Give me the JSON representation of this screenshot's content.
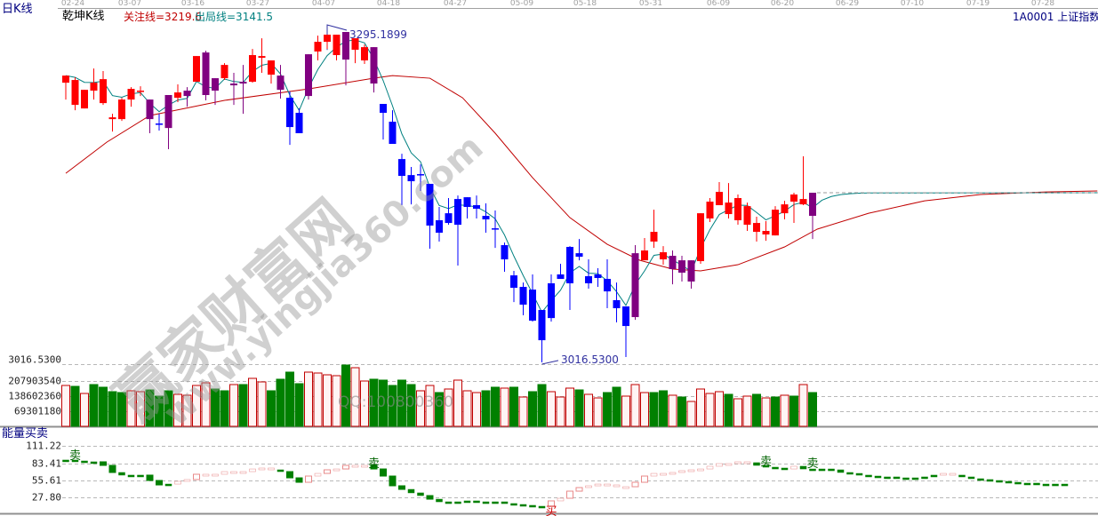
{
  "header": {
    "period_label": "日K线",
    "indicator_name": "乾坤K线",
    "attention_line_label": "关注线=3219.6",
    "exit_line_label": "出局线=3141.5",
    "symbol": "1A0001 上证指数"
  },
  "date_axis": [
    "02-24",
    "03-07",
    "03-16",
    "03-27",
    "04-07",
    "04-18",
    "04-27",
    "05-09",
    "05-18",
    "05-31",
    "06-09",
    "06-20",
    "06-29",
    "07-10",
    "07-19",
    "07-28"
  ],
  "price_markers": {
    "high_label": "3295.1899",
    "low_label": "3016.5300",
    "high": 3295.1899,
    "low": 3016.53
  },
  "volume_panel": {
    "top_label": "3016.5300",
    "axis_labels": [
      "207903540",
      "138602360",
      "69301180"
    ],
    "axis_values": [
      207903540,
      138602360,
      69301180
    ]
  },
  "energy_panel": {
    "title": "能量买卖",
    "axis_labels": [
      "111.22",
      "83.41",
      "55.61",
      "27.80"
    ],
    "axis_values": [
      111.22,
      83.41,
      55.61,
      27.8
    ]
  },
  "watermark": {
    "site_name": "赢家财富网",
    "url": "www.yingjia360.com",
    "qq": "QQ:100800360"
  },
  "colors": {
    "up_candle": "#ff0000",
    "neutral_candle": "#800080",
    "down_candle": "#0000ff",
    "attention_line": "#c00000",
    "exit_line": "#008080",
    "volume_up": "#c00000",
    "volume_down": "#008000",
    "energy_up": "#e88a8a",
    "energy_down": "#008000",
    "label_blue": "#000080"
  },
  "chart_data": {
    "type": "candlestick",
    "candle_fields": [
      "open",
      "high",
      "low",
      "close",
      "color"
    ],
    "candles": [
      [
        3252.4,
        3258.4,
        3238.2,
        3258.4,
        "r"
      ],
      [
        3233.7,
        3257.0,
        3229.2,
        3254.7,
        "r"
      ],
      [
        3230.7,
        3246.4,
        3230.7,
        3246.4,
        "r"
      ],
      [
        3245.7,
        3264.4,
        3238.2,
        3252.4,
        "r"
      ],
      [
        3235.2,
        3262.2,
        3233.7,
        3255.4,
        "r"
      ],
      [
        3221.7,
        3226.2,
        3211.2,
        3223.2,
        "r"
      ],
      [
        3221.7,
        3239.7,
        3220.2,
        3238.2,
        "r"
      ],
      [
        3238.2,
        3248.7,
        3232.2,
        3247.2,
        "r"
      ],
      [
        3245.0,
        3249.4,
        3241.2,
        3245.7,
        "r"
      ],
      [
        3238.2,
        3238.2,
        3209.8,
        3221.7,
        "p"
      ],
      [
        3218.0,
        3226.2,
        3212.0,
        3217.2,
        "b"
      ],
      [
        3214.2,
        3242.0,
        3196.3,
        3242.0,
        "p"
      ],
      [
        3239.7,
        3251.0,
        3236.0,
        3244.2,
        "r"
      ],
      [
        3245.7,
        3248.7,
        3232.2,
        3241.2,
        "p"
      ],
      [
        3253.2,
        3274.9,
        3253.2,
        3274.9,
        "r"
      ],
      [
        3277.9,
        3279.4,
        3237.5,
        3242.0,
        "p"
      ],
      [
        3256.2,
        3256.2,
        3233.7,
        3245.7,
        "p"
      ],
      [
        3256.2,
        3268.9,
        3254.7,
        3267.4,
        "r"
      ],
      [
        3251.7,
        3260.7,
        3233.7,
        3250.2,
        "p"
      ],
      [
        3253.2,
        3267.4,
        3226.2,
        3251.7,
        "p"
      ],
      [
        3253.2,
        3280.9,
        3252.4,
        3275.7,
        "r"
      ],
      [
        3273.4,
        3289.9,
        3260.7,
        3274.9,
        "r"
      ],
      [
        3259.2,
        3271.2,
        3251.7,
        3271.2,
        "r"
      ],
      [
        3258.4,
        3267.4,
        3239.0,
        3246.4,
        "p"
      ],
      [
        3239.7,
        3245.0,
        3200.0,
        3215.0,
        "b"
      ],
      [
        3227.0,
        3230.7,
        3209.8,
        3209.8,
        "b"
      ],
      [
        3241.2,
        3276.4,
        3238.2,
        3276.4,
        "p"
      ],
      [
        3278.7,
        3292.1,
        3271.2,
        3286.9,
        "r"
      ],
      [
        3286.9,
        3292.9,
        3280.9,
        3292.9,
        "r"
      ],
      [
        3275.7,
        3292.9,
        3271.2,
        3292.9,
        "r"
      ],
      [
        3271.9,
        3295.19,
        3250.2,
        3295.19,
        "p"
      ],
      [
        3280.2,
        3289.9,
        3268.9,
        3289.9,
        "r"
      ],
      [
        3271.2,
        3284.6,
        3268.2,
        3282.4,
        "r"
      ],
      [
        3282.4,
        3282.4,
        3244.2,
        3251.7,
        "p"
      ],
      [
        3234.5,
        3234.5,
        3204.5,
        3227.0,
        "b"
      ],
      [
        3219.5,
        3229.2,
        3200.8,
        3200.8,
        "b"
      ],
      [
        3188.0,
        3192.5,
        3149.1,
        3173.8,
        "b"
      ],
      [
        3174.5,
        3181.3,
        3149.8,
        3169.3,
        "b"
      ],
      [
        3175.3,
        3183.5,
        3161.1,
        3174.5,
        "b"
      ],
      [
        3167.1,
        3167.1,
        3112.4,
        3131.9,
        "b"
      ],
      [
        3136.4,
        3147.6,
        3118.4,
        3125.9,
        "b"
      ],
      [
        3134.1,
        3155.1,
        3132.6,
        3142.3,
        "b"
      ],
      [
        3132.6,
        3157.3,
        3098.2,
        3154.3,
        "b"
      ],
      [
        3155.8,
        3155.8,
        3137.9,
        3147.6,
        "b"
      ],
      [
        3149.1,
        3157.3,
        3137.9,
        3146.1,
        "b"
      ],
      [
        3140.1,
        3150.6,
        3125.9,
        3137.1,
        "b"
      ],
      [
        3129.6,
        3144.6,
        3113.1,
        3128.9,
        "b"
      ],
      [
        3115.4,
        3117.6,
        3092.9,
        3103.4,
        "b"
      ],
      [
        3089.9,
        3093.7,
        3067.4,
        3079.4,
        "b"
      ],
      [
        3080.2,
        3083.9,
        3056.2,
        3065.2,
        "b"
      ],
      [
        3077.9,
        3090.7,
        3050.9,
        3051.7,
        "b"
      ],
      [
        3060.7,
        3060.7,
        3016.53,
        3035.2,
        "b"
      ],
      [
        3053.9,
        3090.7,
        3050.9,
        3083.2,
        "b"
      ],
      [
        3086.9,
        3099.7,
        3086.9,
        3090.7,
        "b"
      ],
      [
        3083.2,
        3114.6,
        3060.7,
        3113.9,
        "b"
      ],
      [
        3108.6,
        3120.6,
        3102.6,
        3105.6,
        "b"
      ],
      [
        3089.2,
        3103.4,
        3078.7,
        3083.2,
        "b"
      ],
      [
        3087.7,
        3095.9,
        3080.2,
        3090.7,
        "b"
      ],
      [
        3086.9,
        3103.4,
        3062.2,
        3076.4,
        "b"
      ],
      [
        3069.0,
        3083.9,
        3050.2,
        3062.2,
        "b"
      ],
      [
        3063.7,
        3063.7,
        3021.0,
        3047.2,
        "b"
      ],
      [
        3054.7,
        3115.4,
        3052.4,
        3108.6,
        "p"
      ],
      [
        3102.6,
        3121.4,
        3102.6,
        3110.9,
        "r"
      ],
      [
        3118.4,
        3145.3,
        3113.1,
        3126.6,
        "r"
      ],
      [
        3103.4,
        3114.6,
        3098.9,
        3109.4,
        "r"
      ],
      [
        3106.4,
        3110.9,
        3082.4,
        3095.2,
        "p"
      ],
      [
        3102.6,
        3106.4,
        3084.7,
        3092.2,
        "p"
      ],
      [
        3102.6,
        3102.6,
        3078.7,
        3084.7,
        "p"
      ],
      [
        3101.9,
        3142.3,
        3099.7,
        3142.3,
        "r"
      ],
      [
        3137.9,
        3155.1,
        3134.9,
        3152.1,
        "r"
      ],
      [
        3149.1,
        3168.6,
        3149.1,
        3160.3,
        "r"
      ],
      [
        3141.6,
        3167.8,
        3137.9,
        3151.3,
        "r"
      ],
      [
        3136.4,
        3158.1,
        3132.6,
        3155.1,
        "r"
      ],
      [
        3132.6,
        3151.3,
        3127.4,
        3148.3,
        "r"
      ],
      [
        3126.6,
        3139.4,
        3118.4,
        3134.1,
        "r"
      ],
      [
        3124.4,
        3135.6,
        3119.1,
        3127.4,
        "r"
      ],
      [
        3123.6,
        3148.3,
        3123.6,
        3145.3,
        "r"
      ],
      [
        3142.3,
        3152.8,
        3137.1,
        3149.8,
        "r"
      ],
      [
        3152.1,
        3159.6,
        3134.1,
        3158.1,
        "r"
      ],
      [
        3149.8,
        3190.3,
        3149.1,
        3154.3,
        "r"
      ],
      [
        3159.6,
        3159.6,
        3120.6,
        3140.1,
        "p"
      ]
    ],
    "reference_level": 3159.6,
    "long_line": [
      [
        0,
        3176.0
      ],
      [
        4.4,
        3202.3
      ],
      [
        9,
        3224.7
      ],
      [
        17,
        3237.5
      ],
      [
        26,
        3247.2
      ],
      [
        33,
        3256.2
      ],
      [
        35,
        3258.4
      ],
      [
        39,
        3256.2
      ],
      [
        42.5,
        3239.7
      ],
      [
        46,
        3209.8
      ],
      [
        50,
        3172.3
      ],
      [
        54,
        3138.6
      ],
      [
        58,
        3116.1
      ],
      [
        61.5,
        3102.6
      ],
      [
        65,
        3095.2
      ],
      [
        68,
        3093.7
      ],
      [
        72,
        3098.9
      ],
      [
        77,
        3113.9
      ],
      [
        80.5,
        3128.9
      ],
      [
        86,
        3142.3
      ],
      [
        92,
        3152.8
      ],
      [
        98,
        3158.1
      ],
      [
        105,
        3160.3
      ],
      [
        110.5,
        3161.1
      ]
    ],
    "volume": [
      187500000,
      183400000,
      150800000,
      191600000,
      179400000,
      159000000,
      154900000,
      163100000,
      159000000,
      167100000,
      138600000,
      163100000,
      146800000,
      142700000,
      187500000,
      199700000,
      171200000,
      163100000,
      191600000,
      191600000,
      220100000,
      203800000,
      163100000,
      216100000,
      248700000,
      195700000,
      248700000,
      244600000,
      236400000,
      232400000,
      281300000,
      269000000,
      207900000,
      216100000,
      212000000,
      187500000,
      212000000,
      191600000,
      163100000,
      187500000,
      154900000,
      171200000,
      212000000,
      163100000,
      154900000,
      163100000,
      179400000,
      175300000,
      179400000,
      134500000,
      159000000,
      191600000,
      159000000,
      134500000,
      175300000,
      167100000,
      146800000,
      130400000,
      154900000,
      179400000,
      138600000,
      191600000,
      154900000,
      154900000,
      163100000,
      142700000,
      134500000,
      114100000,
      171200000,
      150800000,
      159000000,
      146800000,
      126400000,
      138600000,
      146800000,
      130400000,
      134500000,
      142700000,
      138600000,
      191600000,
      154900000
    ],
    "volume_colors": "udufddduuddduuuudduduudddduuuuduuddddduuduuuuddududduuuduudduuudduduuuuduudududud",
    "energy": [
      88.2,
      86.7,
      85.3,
      85.3,
      79.5,
      68.0,
      63.7,
      63.7,
      63.7,
      55.0,
      47.8,
      49.2,
      53.6,
      56.5,
      65.1,
      63.7,
      65.1,
      69.4,
      69.4,
      69.4,
      73.7,
      75.2,
      72.3,
      69.4,
      59.3,
      52.1,
      62.2,
      66.5,
      72.3,
      73.7,
      79.5,
      78.1,
      79.5,
      73.7,
      62.2,
      46.4,
      40.6,
      34.9,
      30.5,
      24.7,
      20.4,
      19.0,
      20.4,
      21.9,
      20.4,
      20.4,
      20.4,
      17.6,
      16.1,
      14.7,
      11.8,
      13.2,
      21.9,
      26.2,
      37.7,
      43.5,
      46.4,
      49.2,
      47.8,
      44.9,
      44.9,
      52.1,
      62.2,
      66.5,
      66.5,
      68.0,
      70.9,
      72.3,
      73.7,
      78.1,
      82.4,
      82.4,
      85.3,
      83.9,
      79.5,
      76.6,
      75.2,
      73.7,
      78.1,
      73.7,
      73.7,
      73.7,
      72.3,
      68.0,
      66.5,
      63.7,
      62.2,
      60.8,
      60.8,
      59.3,
      59.3,
      59.3,
      60.8,
      63.7,
      66.5,
      63.7,
      60.8,
      57.9,
      56.5,
      55.0,
      53.6,
      52.1,
      50.7,
      50.7,
      49.2,
      49.2,
      49.2,
      49.2
    ],
    "energy_color_segments": [
      {
        "from": 0,
        "to": 11,
        "color": "g"
      },
      {
        "from": 12,
        "to": 22,
        "color": "p"
      },
      {
        "from": 23,
        "to": 25,
        "color": "g"
      },
      {
        "from": 26,
        "to": 32,
        "color": "p"
      },
      {
        "from": 33,
        "to": 51,
        "color": "g"
      },
      {
        "from": 52,
        "to": 73,
        "color": "p"
      },
      {
        "from": 74,
        "to": 77,
        "color": "g"
      },
      {
        "from": 78,
        "to": 78,
        "color": "p"
      },
      {
        "from": 79,
        "to": 93,
        "color": "g"
      },
      {
        "from": 94,
        "to": 95,
        "color": "p"
      },
      {
        "from": 96,
        "to": 107,
        "color": "g"
      }
    ],
    "signals": [
      {
        "index": 1,
        "label": "卖",
        "type": "sell"
      },
      {
        "index": 33,
        "label": "卖",
        "type": "sell"
      },
      {
        "index": 52,
        "label": "买",
        "type": "buy"
      },
      {
        "index": 75,
        "label": "卖",
        "type": "sell"
      },
      {
        "index": 80,
        "label": "卖",
        "type": "sell"
      }
    ]
  }
}
